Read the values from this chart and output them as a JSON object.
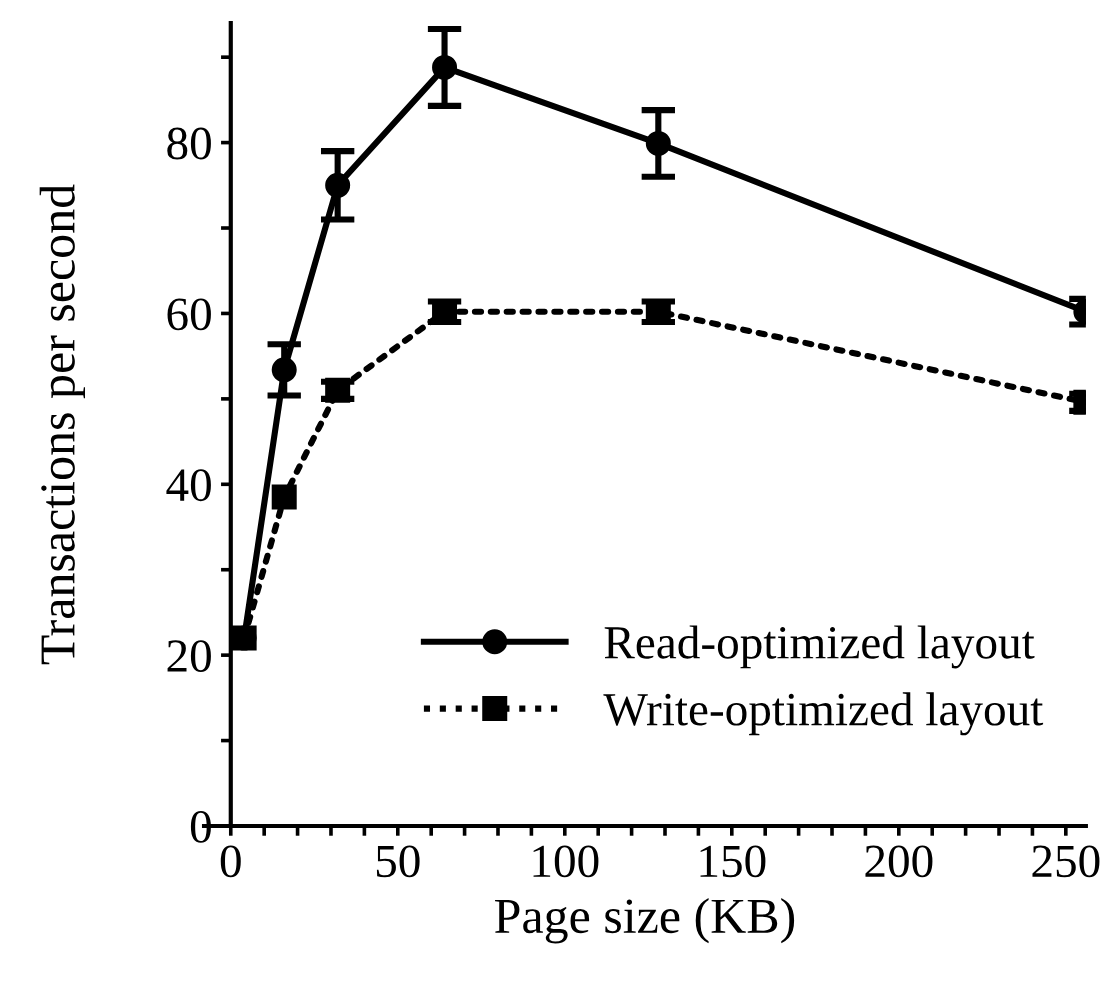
{
  "chart_data": {
    "type": "line",
    "xlabel": "Page size (KB)",
    "ylabel": "Transactions per second",
    "xlim": [
      -8,
      256
    ],
    "ylim": [
      0,
      94
    ],
    "xticks": [
      0,
      {
        "value": 10,
        "label": null
      },
      {
        "value": 20,
        "label": null
      },
      {
        "value": 30,
        "label": null
      },
      {
        "value": 40,
        "label": null
      },
      50,
      {
        "value": 60,
        "label": null
      },
      {
        "value": 70,
        "label": null
      },
      {
        "value": 80,
        "label": null
      },
      {
        "value": 90,
        "label": null
      },
      100,
      {
        "value": 110,
        "label": null
      },
      {
        "value": 120,
        "label": null
      },
      {
        "value": 130,
        "label": null
      },
      {
        "value": 140,
        "label": null
      },
      150,
      {
        "value": 160,
        "label": null
      },
      {
        "value": 170,
        "label": null
      },
      {
        "value": 180,
        "label": null
      },
      {
        "value": 190,
        "label": null
      },
      200,
      {
        "value": 210,
        "label": null
      },
      {
        "value": 220,
        "label": null
      },
      {
        "value": 230,
        "label": null
      },
      {
        "value": 240,
        "label": null
      },
      250
    ],
    "yticks": [
      0,
      {
        "value": 10,
        "label": null
      },
      20,
      {
        "value": 30,
        "label": null
      },
      40,
      {
        "value": 50,
        "label": null
      },
      60,
      {
        "value": 70,
        "label": null
      },
      80,
      {
        "value": 90,
        "label": null
      }
    ],
    "x": [
      4,
      16,
      32,
      64,
      128,
      256
    ],
    "series": [
      {
        "name": "Read-optimized layout",
        "color": "#000000",
        "values": [
          22,
          53.4,
          75,
          88.8,
          79.9,
          60.2
        ],
        "errors": [
          null,
          3,
          4,
          4.5,
          3.9,
          1.5
        ],
        "marker": "circle",
        "line_style": "solid"
      },
      {
        "name": "Write-optimized layout",
        "color": "#000000",
        "values": [
          22,
          38.5,
          51,
          60.2,
          60.2,
          49.6
        ],
        "errors": [
          null,
          null,
          1,
          1.2,
          1.2,
          1
        ],
        "marker": "square",
        "line_style": "dotted"
      }
    ],
    "grid": false,
    "legend": "bottom right"
  }
}
